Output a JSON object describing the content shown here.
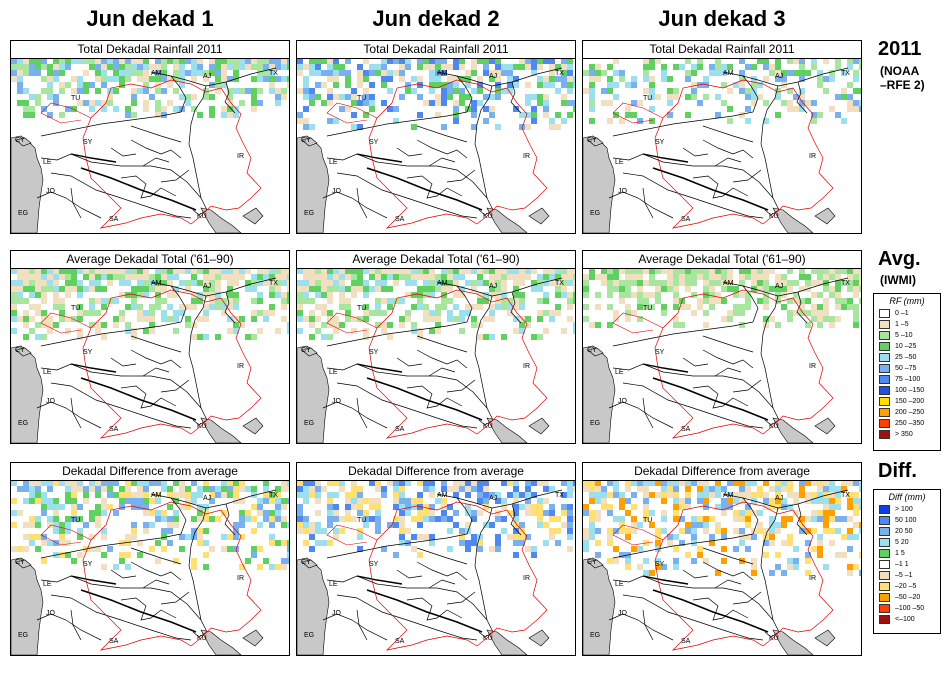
{
  "columns": [
    "Jun dekad 1",
    "Jun dekad 2",
    "Jun dekad 3"
  ],
  "rows": [
    {
      "panel_title": "Total Dekadal Rainfall 2011",
      "side_title": "2011",
      "side_sub": [
        "(NOAA",
        "–RFE 2)"
      ]
    },
    {
      "panel_title": "Average Dekadal Total ('61–90)",
      "side_title": "Avg.",
      "side_sub": [
        "(IWMI)"
      ]
    },
    {
      "panel_title": "Dekadal Difference from average",
      "side_title": "Diff.",
      "side_sub": []
    }
  ],
  "country_labels": [
    "AM",
    "AJ",
    "TX",
    "TU",
    "SY",
    "IR",
    "LE",
    "JO",
    "EG",
    "SA",
    "KU",
    "CY"
  ],
  "rf_legend": {
    "title": "RF (mm)",
    "items": [
      {
        "label": "0 –1",
        "color": "#ffffff"
      },
      {
        "label": "1 –5",
        "color": "#f2dfc0"
      },
      {
        "label": "5 –10",
        "color": "#a8e6a0"
      },
      {
        "label": "10 –25",
        "color": "#60d060"
      },
      {
        "label": "25 –50",
        "color": "#9ce0f0"
      },
      {
        "label": "50 –75",
        "color": "#78b0f0"
      },
      {
        "label": "75 –100",
        "color": "#4f88f0"
      },
      {
        "label": "100 –150",
        "color": "#2050e0"
      },
      {
        "label": "150 –200",
        "color": "#ffe000"
      },
      {
        "label": "200 –250",
        "color": "#ffa000"
      },
      {
        "label": "250 –350",
        "color": "#ff4000"
      },
      {
        "label": "> 350",
        "color": "#a01010"
      }
    ]
  },
  "diff_legend": {
    "title": "Diff (mm)",
    "items": [
      {
        "label": "> 100",
        "color": "#1040e0"
      },
      {
        "label": "50 100",
        "color": "#4f88f0"
      },
      {
        "label": "20 50",
        "color": "#78b0f0"
      },
      {
        "label": "5 20",
        "color": "#9ce0f0"
      },
      {
        "label": "1 5",
        "color": "#60d060"
      },
      {
        "label": "–1 1",
        "color": "#ffffff"
      },
      {
        "label": "–5 –1",
        "color": "#f2dfc0"
      },
      {
        "label": "–20 –5",
        "color": "#ffe070"
      },
      {
        "label": "–50 –20",
        "color": "#ffa000"
      },
      {
        "label": "–100 –50",
        "color": "#ff4000"
      },
      {
        "label": "<–100",
        "color": "#a01010"
      }
    ]
  },
  "colors": {
    "sea": "#c8c8c8",
    "country_border": "#000000",
    "basin_border": "#e00000"
  }
}
